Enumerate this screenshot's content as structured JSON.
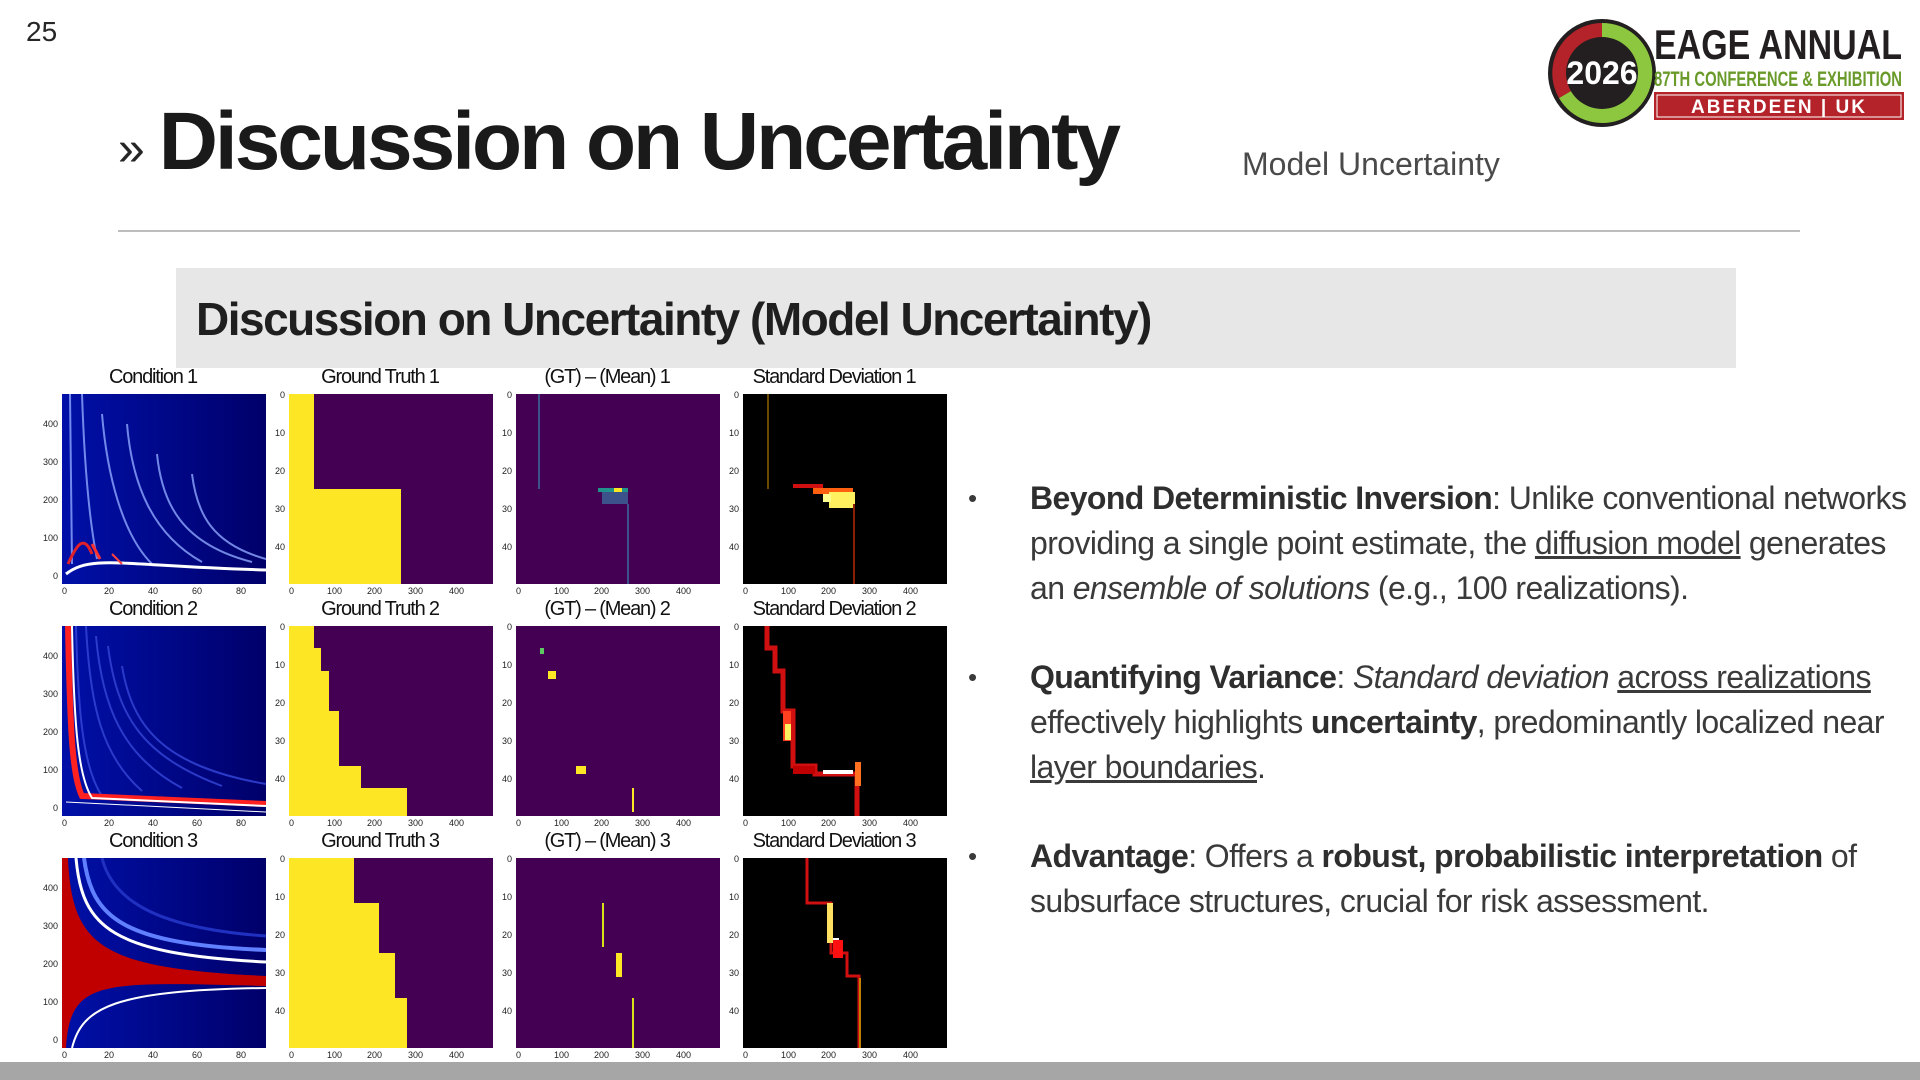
{
  "page": {
    "number": "25"
  },
  "header": {
    "chevron": "»",
    "title": "Discussion on Uncertainty",
    "section_label": "Model Uncertainty"
  },
  "logo": {
    "year": "2026",
    "line1": "EAGE ANNUAL",
    "line2": "87TH CONFERENCE & EXHIBITION",
    "line3": "ABERDEEN | UK",
    "colors": {
      "dark": "#231f20",
      "green": "#8dc63f",
      "red": "#b5232a"
    }
  },
  "banner": {
    "title": "Discussion on Uncertainty (Model Uncertainty)"
  },
  "figure": {
    "rows": [
      {
        "condition": "Condition 1",
        "ground_truth": "Ground Truth 1",
        "diff": "(GT) – (Mean) 1",
        "std": "Standard Deviation 1"
      },
      {
        "condition": "Condition 2",
        "ground_truth": "Ground Truth 2",
        "diff": "(GT) – (Mean) 2",
        "std": "Standard Deviation 2"
      },
      {
        "condition": "Condition 3",
        "ground_truth": "Ground Truth 3",
        "diff": "(GT) – (Mean) 3",
        "std": "Standard Deviation 3"
      }
    ],
    "condition_y_ticks": [
      "400",
      "300",
      "200",
      "100",
      "0"
    ],
    "condition_x_ticks": [
      "0",
      "20",
      "40",
      "60",
      "80"
    ],
    "model_y_ticks": [
      "0",
      "10",
      "20",
      "30",
      "40"
    ],
    "model_x_ticks": [
      "0",
      "100",
      "200",
      "300",
      "400"
    ],
    "colors": {
      "viridis_bg": "#440154",
      "viridis_hi": "#fde725",
      "seismic_bg": "#00008b",
      "hot_bg": "#000000"
    }
  },
  "bullets": [
    {
      "marker": "•",
      "heading": "Beyond Deterministic Inversion",
      "t1": ": Unlike conventional networks providing a single point estimate, the ",
      "u1": "diffusion model",
      "t2": " generates an ",
      "i1": "ensemble of solutions",
      "t3": " (e.g., 100 realizations)."
    },
    {
      "marker": "•",
      "heading": "Quantifying Variance",
      "t1": ": ",
      "i1": "Standard deviation",
      "t2": " ",
      "u1": "across realizations",
      "t3": " effectively highlights ",
      "b1": "uncertainty",
      "t4": ", predominantly localized near ",
      "u2": "layer boundaries",
      "t5": "."
    },
    {
      "marker": "•",
      "heading": "Advantage",
      "t1": ": Offers a ",
      "b1": "robust, probabilistic interpretation",
      "t2": " of subsurface structures, crucial for risk assessment."
    }
  ]
}
